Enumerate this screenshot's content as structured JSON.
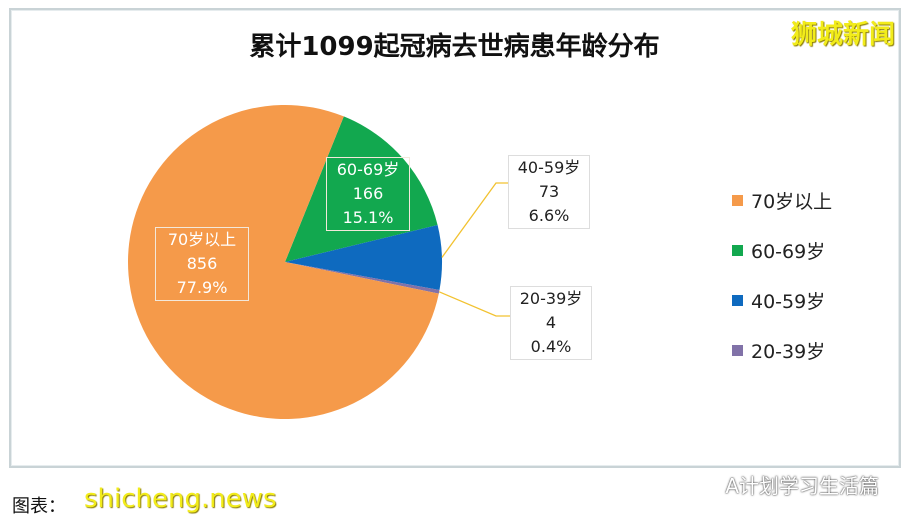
{
  "chart_data": {
    "type": "pie",
    "title": "累计1099起冠病去世病患年龄分布",
    "categories": [
      "70岁以上",
      "60-69岁",
      "40-59岁",
      "20-39岁"
    ],
    "values": [
      856,
      166,
      73,
      4
    ],
    "percent_labels": [
      "77.9%",
      "15.1%",
      "6.6%",
      "0.4%"
    ],
    "colors": [
      "#f59a4a",
      "#12a84f",
      "#0e6abf",
      "#8172a8"
    ],
    "legend_position": "right"
  },
  "brand": "狮城新闻",
  "watermark": "A计划学习生活篇",
  "credit": "图表：",
  "site_watermark": "shicheng.news"
}
